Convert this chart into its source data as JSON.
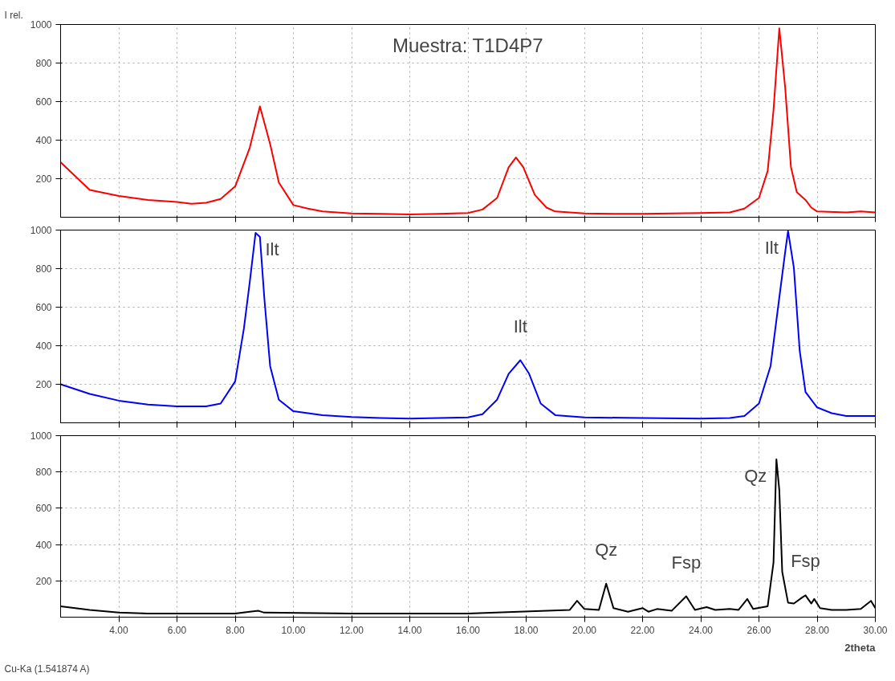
{
  "chart_data": [
    {
      "type": "line",
      "title": "Muestra: T1D4P7",
      "ylabel": "I rel.",
      "tick_labels": "y",
      "grid": true,
      "line_style": "solid",
      "marker": "none",
      "x": [
        2,
        3,
        4,
        5,
        6,
        6.5,
        7,
        7.5,
        8,
        8.5,
        8.85,
        9.2,
        9.5,
        10,
        10.5,
        11,
        12,
        13,
        14,
        15,
        16,
        16.5,
        17,
        17.4,
        17.65,
        17.9,
        18.3,
        18.7,
        19,
        20,
        21,
        22,
        23,
        24,
        25,
        25.5,
        26,
        26.3,
        26.5,
        26.7,
        26.9,
        27.1,
        27.3,
        27.6,
        27.8,
        28,
        29,
        29.5,
        30
      ],
      "series": [
        {
          "color": "#ff0000",
          "values": [
            285,
            142,
            110,
            90,
            79,
            70,
            75,
            95,
            160,
            360,
            575,
            380,
            180,
            63,
            45,
            30,
            20,
            18,
            15,
            18,
            22,
            40,
            100,
            260,
            310,
            260,
            115,
            50,
            30,
            20,
            18,
            18,
            20,
            22,
            25,
            45,
            100,
            240,
            555,
            980,
            675,
            260,
            130,
            90,
            50,
            30,
            25,
            30,
            25
          ]
        }
      ],
      "xlim": [
        2,
        30
      ],
      "xticks": [
        {
          "value": 4,
          "label": null
        },
        {
          "value": 6,
          "label": null
        },
        {
          "value": 8,
          "label": null
        },
        {
          "value": 10,
          "label": null
        },
        {
          "value": 12,
          "label": null
        },
        {
          "value": 14,
          "label": null
        },
        {
          "value": 16,
          "label": null
        },
        {
          "value": 18,
          "label": null
        },
        {
          "value": 20,
          "label": null
        },
        {
          "value": 22,
          "label": null
        },
        {
          "value": 24,
          "label": null
        },
        {
          "value": 26,
          "label": null
        },
        {
          "value": 28,
          "label": null
        },
        {
          "value": 30,
          "label": null
        }
      ],
      "ylim": [
        0,
        1000
      ],
      "yticks": [
        200,
        400,
        600,
        800,
        1000
      ]
    },
    {
      "type": "line",
      "tick_labels": "y",
      "grid": true,
      "line_style": "solid",
      "marker": "none",
      "x": [
        2,
        3,
        4,
        5,
        6,
        7,
        7.5,
        8,
        8.3,
        8.5,
        8.7,
        8.85,
        9,
        9.2,
        9.5,
        10,
        11,
        12,
        13,
        14,
        15,
        16,
        16.5,
        17,
        17.4,
        17.8,
        18.1,
        18.5,
        19,
        20,
        22,
        24,
        25,
        25.5,
        26,
        26.4,
        26.7,
        26.9,
        27,
        27.2,
        27.4,
        27.6,
        28,
        28.5,
        29,
        30
      ],
      "series": [
        {
          "color": "#0000ff",
          "values": [
            200,
            150,
            115,
            95,
            85,
            85,
            100,
            215,
            490,
            730,
            985,
            965,
            650,
            295,
            120,
            60,
            40,
            30,
            25,
            22,
            25,
            28,
            45,
            120,
            255,
            325,
            255,
            100,
            40,
            28,
            25,
            22,
            25,
            35,
            100,
            295,
            650,
            885,
            995,
            805,
            375,
            160,
            80,
            50,
            35,
            35
          ]
        }
      ],
      "annotations": [
        {
          "text": "Ilt",
          "x": 8.7,
          "y": 985
        },
        {
          "text": "Ilt",
          "x": 17.8,
          "y": 325
        },
        {
          "text": "Ilt",
          "x": 27,
          "y": 995
        }
      ],
      "xlim": [
        2,
        30
      ],
      "xticks": [
        {
          "value": 4,
          "label": null
        },
        {
          "value": 6,
          "label": null
        },
        {
          "value": 8,
          "label": null
        },
        {
          "value": 10,
          "label": null
        },
        {
          "value": 12,
          "label": null
        },
        {
          "value": 14,
          "label": null
        },
        {
          "value": 16,
          "label": null
        },
        {
          "value": 18,
          "label": null
        },
        {
          "value": 20,
          "label": null
        },
        {
          "value": 22,
          "label": null
        },
        {
          "value": 24,
          "label": null
        },
        {
          "value": 26,
          "label": null
        },
        {
          "value": 28,
          "label": null
        },
        {
          "value": 30,
          "label": null
        }
      ],
      "ylim": [
        0,
        1000
      ],
      "yticks": [
        200,
        400,
        600,
        800,
        1000
      ]
    },
    {
      "type": "line",
      "xlabel": "2theta",
      "grid": true,
      "line_style": "solid",
      "marker": "none",
      "x": [
        2,
        3,
        4,
        5,
        8,
        8.5,
        8.8,
        9,
        12,
        16,
        19.5,
        19.75,
        20,
        20.5,
        20.75,
        21,
        21.5,
        22,
        22.2,
        22.5,
        23,
        23.5,
        23.8,
        24.2,
        24.5,
        25,
        25.3,
        25.6,
        25.8,
        26.3,
        26.5,
        26.6,
        26.7,
        26.8,
        27,
        27.2,
        27.5,
        27.6,
        27.8,
        27.9,
        28.1,
        28.5,
        29,
        29.5,
        29.85,
        30
      ],
      "series": [
        {
          "color": "#000000",
          "values": [
            60,
            40,
            25,
            20,
            20,
            30,
            35,
            25,
            20,
            20,
            40,
            90,
            45,
            40,
            185,
            50,
            30,
            50,
            30,
            45,
            35,
            115,
            40,
            55,
            40,
            45,
            40,
            100,
            45,
            60,
            300,
            870,
            700,
            250,
            80,
            75,
            110,
            120,
            75,
            100,
            50,
            40,
            40,
            45,
            90,
            50
          ]
        }
      ],
      "annotations": [
        {
          "text": "Qz",
          "x": 20.75,
          "y": 185
        },
        {
          "text": "Qz",
          "x": 26.6,
          "y": 870
        },
        {
          "text": "Fsp",
          "x": 23.5,
          "y": 115
        },
        {
          "text": "Fsp",
          "x": 27.6,
          "y": 120
        },
        "Cu-Ka (1.541874 A)"
      ],
      "xlim": [
        2,
        30
      ],
      "xticks": [
        {
          "value": 4,
          "label": "4.00"
        },
        {
          "value": 6,
          "label": "6.00"
        },
        {
          "value": 8,
          "label": "8.00"
        },
        {
          "value": 10,
          "label": "10.00"
        },
        {
          "value": 12,
          "label": "12.00"
        },
        {
          "value": 14,
          "label": "14.00"
        },
        {
          "value": 16,
          "label": "16.00"
        },
        {
          "value": 18,
          "label": "18.00"
        },
        {
          "value": 20,
          "label": "20.00"
        },
        {
          "value": 22,
          "label": "22.00"
        },
        {
          "value": 24,
          "label": "24.00"
        },
        {
          "value": 26,
          "label": "26.00"
        },
        {
          "value": 28,
          "label": "28.00"
        },
        {
          "value": 30,
          "label": "30.00"
        }
      ],
      "ylim": [
        0,
        1000
      ],
      "yticks": [
        200,
        400,
        600,
        800,
        1000
      ]
    }
  ]
}
